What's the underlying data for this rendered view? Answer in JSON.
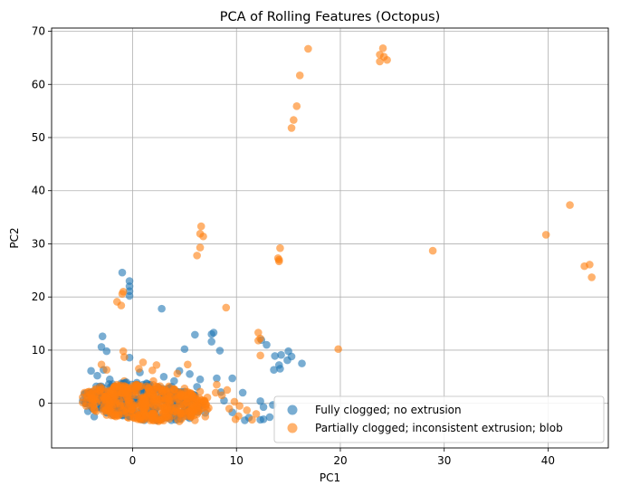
{
  "chart_data": {
    "type": "scatter",
    "title": "PCA of Rolling Features (Octopus)",
    "xlabel": "PC1",
    "ylabel": "PC2",
    "xlim": [
      -7.8,
      45.8
    ],
    "ylim": [
      -8.4,
      70.6
    ],
    "xticks": [
      0,
      10,
      20,
      30,
      40
    ],
    "yticks": [
      0,
      10,
      20,
      30,
      40,
      50,
      60,
      70
    ],
    "grid": true,
    "legend_position": "lower-right",
    "series": [
      {
        "name": "Fully clogged; no extrusion",
        "color": "#1f77b4",
        "points": [
          [
            -1,
            24.6
          ],
          [
            -0.3,
            23
          ],
          [
            -0.3,
            22
          ],
          [
            -0.3,
            21.1
          ],
          [
            -0.3,
            20.2
          ],
          [
            2.8,
            17.8
          ],
          [
            -2.9,
            12.6
          ],
          [
            -3,
            10.6
          ],
          [
            -2.5,
            9.8
          ],
          [
            -0.3,
            8.6
          ],
          [
            7.6,
            13
          ],
          [
            7.8,
            13.3
          ],
          [
            7.6,
            11.6
          ],
          [
            6,
            12.9
          ],
          [
            8.4,
            9.9
          ],
          [
            5,
            10.2
          ],
          [
            12.4,
            11.9
          ],
          [
            12.9,
            11
          ],
          [
            15,
            9.8
          ],
          [
            15.3,
            8.8
          ],
          [
            14.3,
            9.1
          ],
          [
            13.7,
            8.9
          ],
          [
            14.9,
            8.1
          ],
          [
            16.3,
            7.5
          ],
          [
            14.1,
            7.2
          ],
          [
            14.2,
            6.5
          ],
          [
            13.6,
            6.3
          ],
          [
            9.6,
            4.7
          ],
          [
            8.1,
            4.7
          ],
          [
            10.6,
            2
          ],
          [
            12.3,
            0.4
          ],
          [
            12.6,
            -0.7
          ],
          [
            13.5,
            -0.3
          ],
          [
            13.2,
            -2.6
          ],
          [
            12.6,
            -3
          ],
          [
            12.3,
            -3.1
          ],
          [
            10.8,
            -3.2
          ],
          [
            11.2,
            -2.7
          ],
          [
            9.6,
            -1.7
          ],
          [
            8.5,
            2.1
          ],
          [
            8.8,
            0.5
          ],
          [
            6.2,
            3.1
          ],
          [
            4.5,
            6.1
          ],
          [
            5.5,
            5.5
          ],
          [
            6.5,
            4.5
          ],
          [
            -4.8,
            0.5
          ],
          [
            -4.3,
            -1.5
          ],
          [
            -3.7,
            -2.5
          ],
          [
            -3.8,
            1.5
          ],
          [
            -3.5,
            3.2
          ],
          [
            -4,
            6.1
          ],
          [
            -3.4,
            5.2
          ],
          [
            -2.8,
            6.3
          ],
          [
            -2.2,
            4.5
          ],
          [
            0.7,
            5.8
          ],
          [
            3,
            5
          ],
          [
            4,
            4.2
          ],
          [
            1,
            3.5
          ],
          [
            2,
            2.5
          ],
          [
            -2,
            -1.5
          ],
          [
            0,
            -2
          ],
          [
            2,
            -2.5
          ],
          [
            4,
            -2.3
          ],
          [
            5.5,
            -2.8
          ],
          [
            7,
            -1.8
          ],
          [
            -3,
            -1
          ],
          [
            -1,
            1
          ],
          [
            0.5,
            0.5
          ],
          [
            3,
            1
          ],
          [
            6,
            1.5
          ],
          [
            -4.5,
            0
          ],
          [
            -3,
            0
          ],
          [
            -2.5,
            1.2
          ],
          [
            -1.5,
            2.2
          ],
          [
            1.5,
            1.5
          ]
        ]
      },
      {
        "name": "Partially clogged; inconsistent extrusion; blob",
        "color": "#ff7f0e",
        "points": [
          [
            16.9,
            66.7
          ],
          [
            24.1,
            66.8
          ],
          [
            23.8,
            65.6
          ],
          [
            24.2,
            65.2
          ],
          [
            23.8,
            64.3
          ],
          [
            24.5,
            64.6
          ],
          [
            16.1,
            61.7
          ],
          [
            15.8,
            55.9
          ],
          [
            15.5,
            53.3
          ],
          [
            15.3,
            51.8
          ],
          [
            42.1,
            37.3
          ],
          [
            39.8,
            31.7
          ],
          [
            44,
            26.1
          ],
          [
            43.5,
            25.8
          ],
          [
            44.2,
            23.7
          ],
          [
            28.9,
            28.7
          ],
          [
            6.6,
            33.3
          ],
          [
            6.5,
            31.9
          ],
          [
            6.8,
            31.4
          ],
          [
            6.5,
            29.3
          ],
          [
            6.2,
            27.8
          ],
          [
            14.2,
            29.2
          ],
          [
            14,
            27.3
          ],
          [
            14.1,
            27
          ],
          [
            14.1,
            26.7
          ],
          [
            -0.9,
            21
          ],
          [
            -1,
            20.6
          ],
          [
            -1.5,
            19.1
          ],
          [
            -1.1,
            18.4
          ],
          [
            9,
            18
          ],
          [
            12.1,
            13.3
          ],
          [
            12.3,
            12.2
          ],
          [
            12.1,
            11.8
          ],
          [
            19.8,
            10.2
          ],
          [
            12.3,
            9
          ],
          [
            -0.9,
            9.8
          ],
          [
            -0.8,
            8.7
          ],
          [
            -3,
            7.3
          ],
          [
            1,
            7.7
          ],
          [
            2.3,
            7.2
          ],
          [
            5.3,
            7.3
          ],
          [
            1.9,
            6.2
          ],
          [
            0.6,
            6.5
          ],
          [
            -2.5,
            6.3
          ],
          [
            4.3,
            5.6
          ],
          [
            8.1,
            3.5
          ],
          [
            9.1,
            2.5
          ],
          [
            8,
            2
          ],
          [
            8.6,
            1.5
          ],
          [
            7.2,
            1.1
          ],
          [
            9.8,
            0.3
          ],
          [
            10.3,
            -0.5
          ],
          [
            11,
            -1.3
          ],
          [
            11.9,
            -2
          ],
          [
            10.2,
            -2.4
          ],
          [
            9.9,
            -3
          ],
          [
            11.5,
            -3.1
          ],
          [
            9.3,
            -1
          ],
          [
            6.5,
            0
          ],
          [
            5,
            -1.2
          ],
          [
            3.5,
            -2.5
          ],
          [
            1.5,
            -2.8
          ],
          [
            -0.5,
            -2.6
          ],
          [
            -2.5,
            -2.2
          ],
          [
            -3.5,
            -1.5
          ],
          [
            -4,
            0.2
          ],
          [
            -3.2,
            1.8
          ],
          [
            -2,
            3.2
          ],
          [
            -0.8,
            4.2
          ],
          [
            0.5,
            3.5
          ],
          [
            2,
            4.2
          ],
          [
            3.5,
            3.2
          ],
          [
            5,
            2.8
          ],
          [
            6.5,
            2.2
          ],
          [
            4.5,
            0.8
          ],
          [
            3,
            1.2
          ],
          [
            1.5,
            0.8
          ],
          [
            0,
            0.6
          ],
          [
            -1.5,
            0.5
          ],
          [
            -3,
            -0.2
          ],
          [
            -2,
            -1
          ],
          [
            0,
            -1.2
          ],
          [
            2,
            -1.5
          ],
          [
            3.5,
            -1.8
          ],
          [
            5.5,
            -2.2
          ],
          [
            7,
            -2.5
          ],
          [
            6,
            -3.2
          ],
          [
            4.5,
            -3.4
          ],
          [
            2.5,
            -3.4
          ],
          [
            0.5,
            -3
          ],
          [
            -1.5,
            2
          ],
          [
            1,
            2.5
          ],
          [
            2.8,
            2.3
          ],
          [
            4.2,
            1.8
          ],
          [
            5.8,
            1
          ]
        ]
      }
    ]
  }
}
